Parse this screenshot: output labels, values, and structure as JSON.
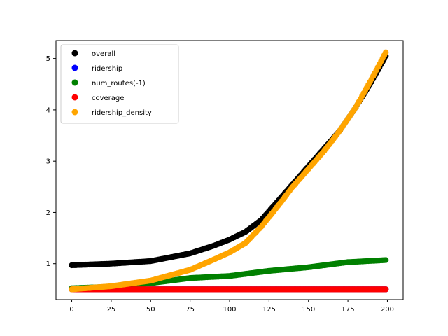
{
  "chart_data": {
    "type": "scatter",
    "title": "",
    "xlabel": "",
    "ylabel": "",
    "xlim": [
      -10,
      210
    ],
    "ylim": [
      0.3,
      5.35
    ],
    "xticks": [
      0,
      25,
      50,
      75,
      100,
      125,
      150,
      175,
      200
    ],
    "yticks": [
      1,
      2,
      3,
      4,
      5
    ],
    "grid": false,
    "legend_position": "top-left",
    "n_points": 200,
    "series": [
      {
        "name": "overall",
        "color": "#000000",
        "anchors": {
          "x": [
            0,
            25,
            50,
            75,
            90,
            100,
            110,
            120,
            130,
            140,
            150,
            160,
            170,
            180,
            190,
            199
          ],
          "y": [
            0.97,
            1.0,
            1.05,
            1.2,
            1.35,
            1.47,
            1.62,
            1.85,
            2.2,
            2.55,
            2.9,
            3.25,
            3.6,
            4.05,
            4.55,
            5.05
          ]
        }
      },
      {
        "name": "ridership",
        "color": "#0000ff",
        "anchors": {
          "x": [
            0,
            199
          ],
          "y": [
            0.5,
            0.5
          ]
        }
      },
      {
        "name": "num_routes(-1)",
        "color": "#008000",
        "anchors": {
          "x": [
            0,
            25,
            50,
            75,
            100,
            125,
            150,
            175,
            199
          ],
          "y": [
            0.52,
            0.55,
            0.62,
            0.72,
            0.76,
            0.86,
            0.93,
            1.03,
            1.07
          ]
        }
      },
      {
        "name": "coverage",
        "color": "#ff0000",
        "anchors": {
          "x": [
            0,
            199
          ],
          "y": [
            0.5,
            0.5
          ]
        }
      },
      {
        "name": "ridership_density",
        "color": "#ffa500",
        "anchors": {
          "x": [
            0,
            25,
            50,
            75,
            90,
            100,
            110,
            120,
            130,
            140,
            150,
            160,
            170,
            180,
            190,
            199
          ],
          "y": [
            0.5,
            0.56,
            0.67,
            0.88,
            1.08,
            1.22,
            1.4,
            1.72,
            2.1,
            2.5,
            2.85,
            3.2,
            3.6,
            4.05,
            4.6,
            5.12
          ]
        }
      }
    ]
  }
}
